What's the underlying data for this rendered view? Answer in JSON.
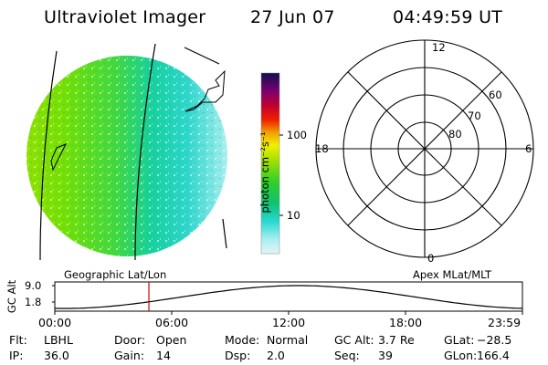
{
  "header": {
    "title": "Ultraviolet Imager",
    "date": "27 Jun 07",
    "time": "04:49:59 UT"
  },
  "colorbar": {
    "label": "photon cm⁻²s⁻¹",
    "ticks": [
      "100",
      "10"
    ]
  },
  "polar_plot": {
    "mlt_labels": [
      "12",
      "18",
      "6",
      "0"
    ],
    "lat_labels": [
      "60",
      "70",
      "80"
    ]
  },
  "altitude_panel": {
    "left_caption": "Geographic Lat/Lon",
    "right_caption": "Apex MLat/MLT",
    "ylabel": "GC Alt",
    "y_ticks": [
      "9.0",
      "1.8"
    ],
    "x_ticks": [
      "00:00",
      "06:00",
      "12:00",
      "18:00",
      "23:59"
    ],
    "current_time_marker_hours": 4.83,
    "marker_color": "#d00000"
  },
  "status": {
    "row1": [
      {
        "key": "Flt:",
        "value": "LBHL"
      },
      {
        "key": "Door:",
        "value": "Open"
      },
      {
        "key": "Mode:",
        "value": "Normal"
      },
      {
        "key": "GC Alt:",
        "value": "3.7 Re"
      },
      {
        "key": "GLat:",
        "value": "−28.5"
      }
    ],
    "row2": [
      {
        "key": "IP:",
        "value": "36.0"
      },
      {
        "key": "Gain:",
        "value": "14"
      },
      {
        "key": "Dsp:",
        "value": "2.0"
      },
      {
        "key": "Seq:",
        "value": "39"
      },
      {
        "key": "GLon:",
        "value": "166.4"
      }
    ]
  }
}
